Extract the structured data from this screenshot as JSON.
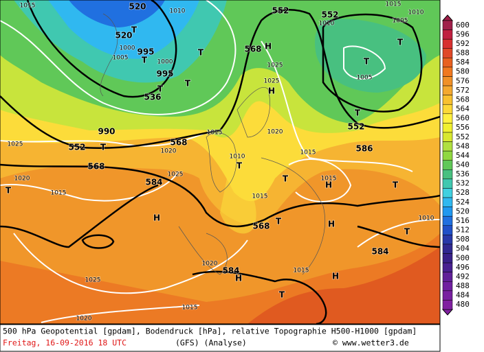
{
  "map": {
    "labels": [
      "1015",
      "520",
      "1010",
      "552",
      "552",
      "1010",
      "1015",
      "1010",
      "1005",
      "520",
      "T",
      "1000",
      "995",
      "1005",
      "T",
      "1000",
      "995",
      "T",
      "T",
      "568",
      "H",
      "1025",
      "T",
      "T",
      "1005",
      "536",
      "T",
      "H",
      "1025",
      "T",
      "552",
      "1015",
      "1020",
      "990",
      "552",
      "T",
      "568",
      "1020",
      "586",
      "1025",
      "1015",
      "1010",
      "T",
      "568",
      "1020",
      "1015",
      "584",
      "1025",
      "1015",
      "H",
      "T",
      "T",
      "T",
      "1015",
      "H",
      "568",
      "T",
      "H",
      "T",
      "1010",
      "584",
      "1020",
      "584",
      "H",
      "1015",
      "H",
      "1025",
      "T",
      "1015",
      "1020"
    ]
  },
  "legend": {
    "values": [
      600,
      596,
      592,
      588,
      584,
      580,
      576,
      572,
      568,
      564,
      560,
      556,
      552,
      548,
      544,
      540,
      536,
      532,
      528,
      524,
      520,
      516,
      512,
      508,
      504,
      500,
      496,
      492,
      488,
      484,
      480
    ],
    "colors": [
      "#a0204a",
      "#c02040",
      "#d83030",
      "#e04828",
      "#e86020",
      "#f07820",
      "#f09028",
      "#f4a830",
      "#f8c030",
      "#fcd838",
      "#fff040",
      "#f0f030",
      "#d8e830",
      "#b0e040",
      "#90d840",
      "#60c858",
      "#48c080",
      "#40c8b0",
      "#40d0e0",
      "#30b8f0",
      "#2098f0",
      "#2070e0",
      "#2050c8",
      "#2838a8",
      "#302890",
      "#382088",
      "#482090",
      "#602098",
      "#7020a0",
      "#7820a0",
      "#8020a0"
    ]
  },
  "caption": {
    "line1": "500 hPa Geopotential [gpdam], Bodendruck [hPa], relative Topographie H500-H1000 [gpdam]",
    "date": "Freitag, 16-09-2016  18 UTC",
    "model": "(GFS)  (Analyse)",
    "copyright": "© www.wetter3.de"
  }
}
